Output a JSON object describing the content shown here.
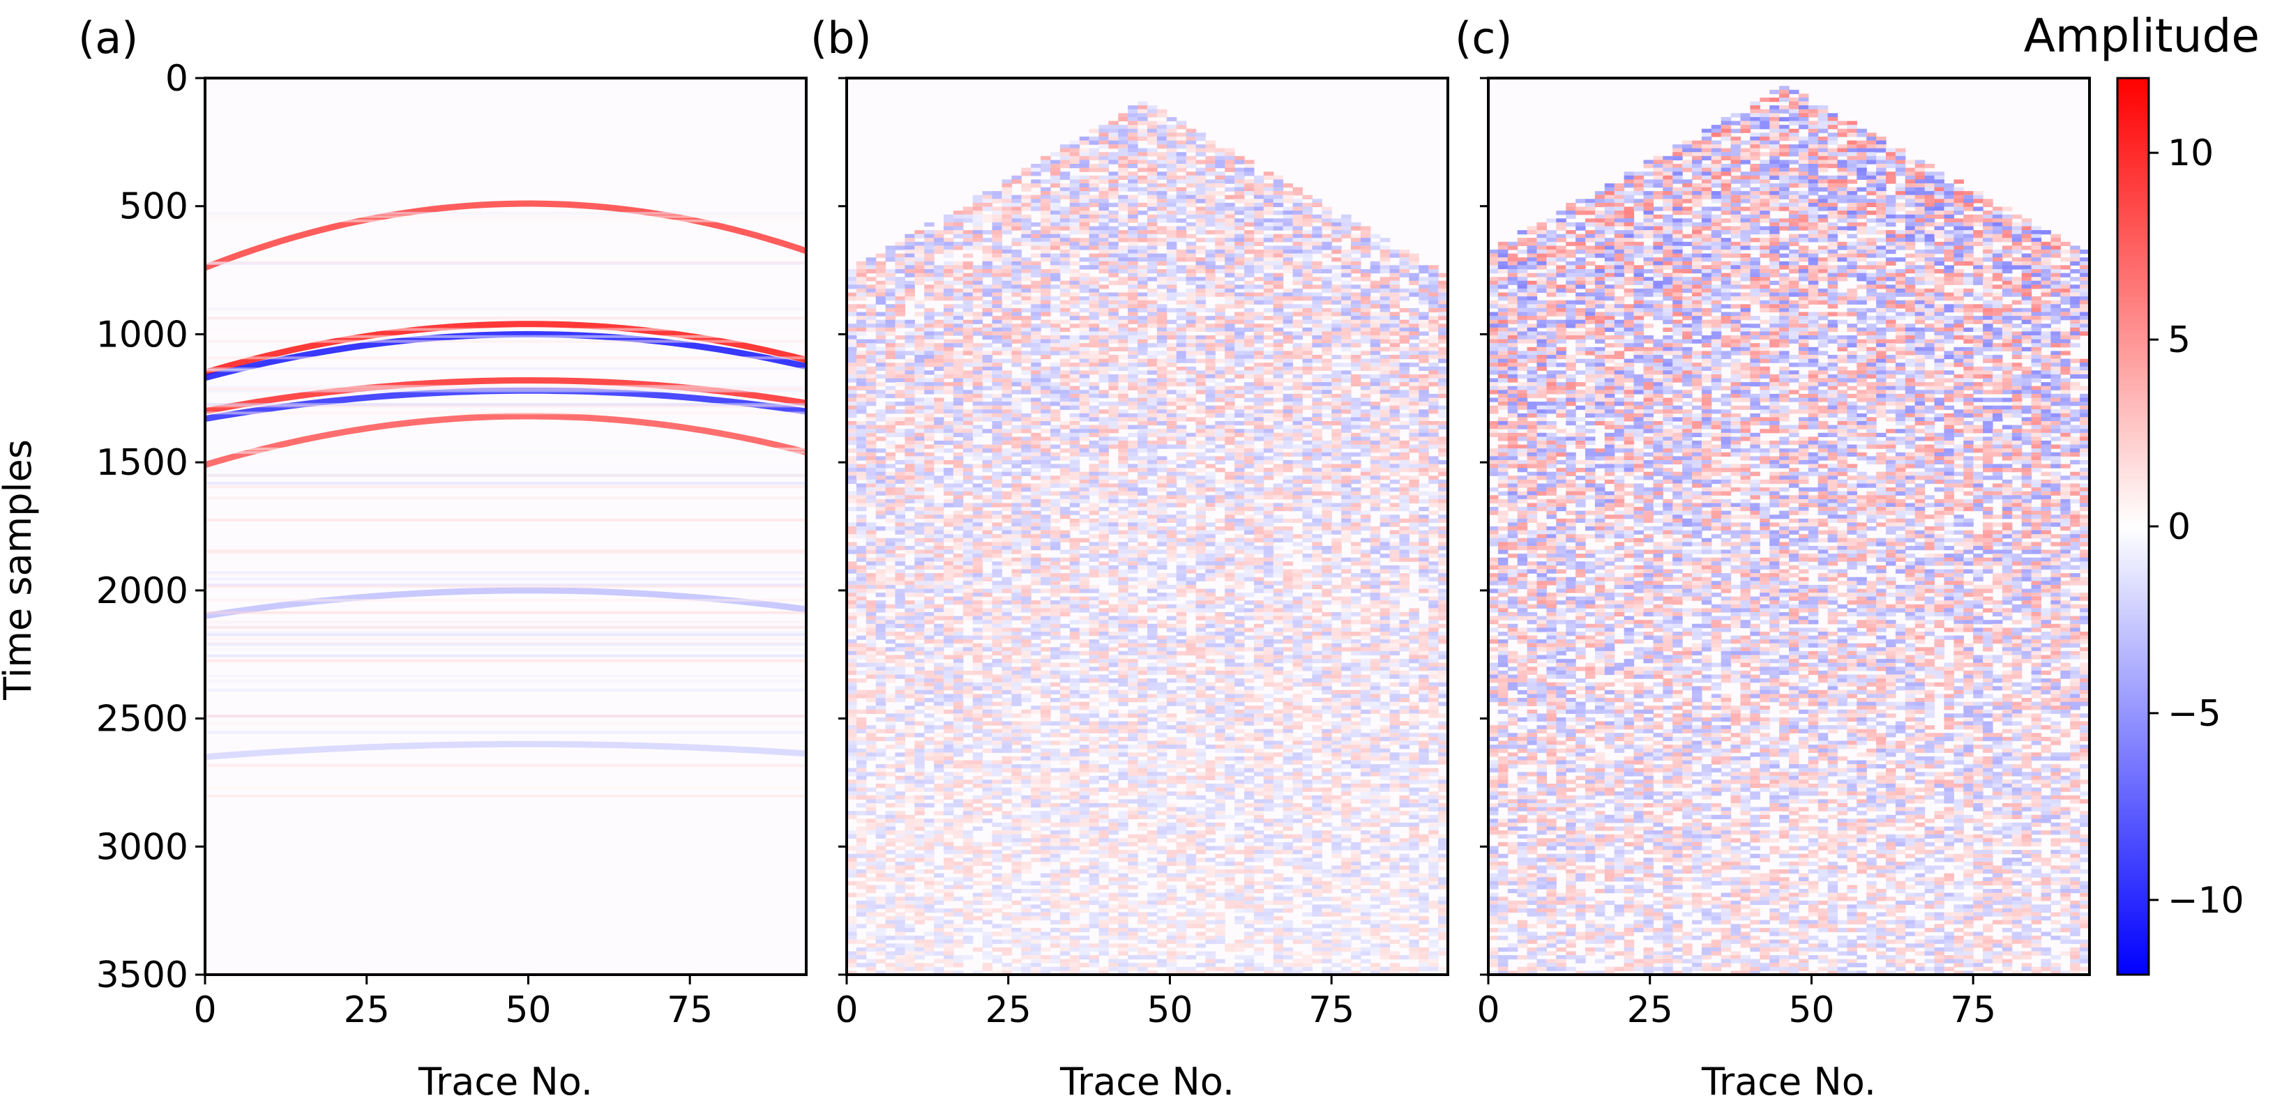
{
  "chart_data": {
    "type": "heatmap",
    "colormap": "bwr",
    "shared_ylabel": "Time samples",
    "colorbar": {
      "title": "Amplitude",
      "range": [
        -12,
        12
      ],
      "ticks": [
        -10,
        -5,
        0,
        5,
        10
      ],
      "tick_labels": [
        "−10",
        "−5",
        "0",
        "5",
        "10"
      ]
    },
    "yaxis": {
      "range": [
        0,
        3500
      ],
      "inverted": true,
      "ticks": [
        0,
        500,
        1000,
        1500,
        2000,
        2500,
        3000,
        3500
      ],
      "tick_labels": [
        "0",
        "500",
        "1000",
        "1500",
        "2000",
        "2500",
        "3000",
        "3500"
      ]
    },
    "panels": [
      {
        "label": "(a)",
        "xlabel": "Trace No.",
        "xlim": [
          0,
          93
        ],
        "x_ticks": [
          0,
          25,
          50,
          75
        ],
        "x_tick_labels": [
          "0",
          "25",
          "50",
          "75"
        ],
        "pattern": "clean reflections",
        "reflection_events": [
          {
            "apex_trace": 50,
            "apex_time": 490,
            "edge_time": 740,
            "amplitude": 9
          },
          {
            "apex_trace": 50,
            "apex_time": 960,
            "edge_time": 1150,
            "amplitude": 11
          },
          {
            "apex_trace": 50,
            "apex_time": 1000,
            "edge_time": 1170,
            "amplitude": -11
          },
          {
            "apex_trace": 50,
            "apex_time": 1180,
            "edge_time": 1300,
            "amplitude": 10
          },
          {
            "apex_trace": 50,
            "apex_time": 1220,
            "edge_time": 1330,
            "amplitude": -10
          },
          {
            "apex_trace": 50,
            "apex_time": 1320,
            "edge_time": 1510,
            "amplitude": 8
          },
          {
            "apex_trace": 50,
            "apex_time": 2000,
            "edge_time": 2100,
            "amplitude": -3
          },
          {
            "apex_trace": 50,
            "apex_time": 2600,
            "edge_time": 2650,
            "amplitude": -2
          }
        ]
      },
      {
        "label": "(b)",
        "xlabel": "Trace No.",
        "xlim": [
          0,
          93
        ],
        "x_ticks": [
          0,
          25,
          50,
          75
        ],
        "x_tick_labels": [
          "0",
          "25",
          "50",
          "75"
        ],
        "pattern": "noisy, no y tick labels",
        "noise_apex": {
          "trace": 46,
          "time": 80
        },
        "noise_edge_time": 760,
        "noise_amplitude": 4
      },
      {
        "label": "(c)",
        "xlabel": "Trace No.",
        "xlim": [
          0,
          93
        ],
        "x_ticks": [
          0,
          25,
          50,
          75
        ],
        "x_tick_labels": [
          "0",
          "25",
          "50",
          "75"
        ],
        "pattern": "noisy, no y tick labels",
        "noise_apex": {
          "trace": 46,
          "time": 20
        },
        "noise_edge_time": 680,
        "noise_amplitude": 6
      }
    ]
  }
}
